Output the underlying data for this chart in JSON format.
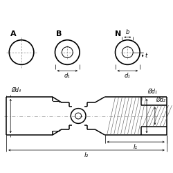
{
  "bg_color": "#ffffff",
  "line_color": "#000000",
  "label_A": "A",
  "label_B": "B",
  "label_N": "N",
  "label_b": "b",
  "label_t": "t",
  "label_d1_top": "d₁",
  "label_d1_side": "Ød₁",
  "label_d2_side": "Ød₂",
  "label_d4_side": "Ød₄",
  "label_l1": "l₁",
  "label_l2": "l₂"
}
